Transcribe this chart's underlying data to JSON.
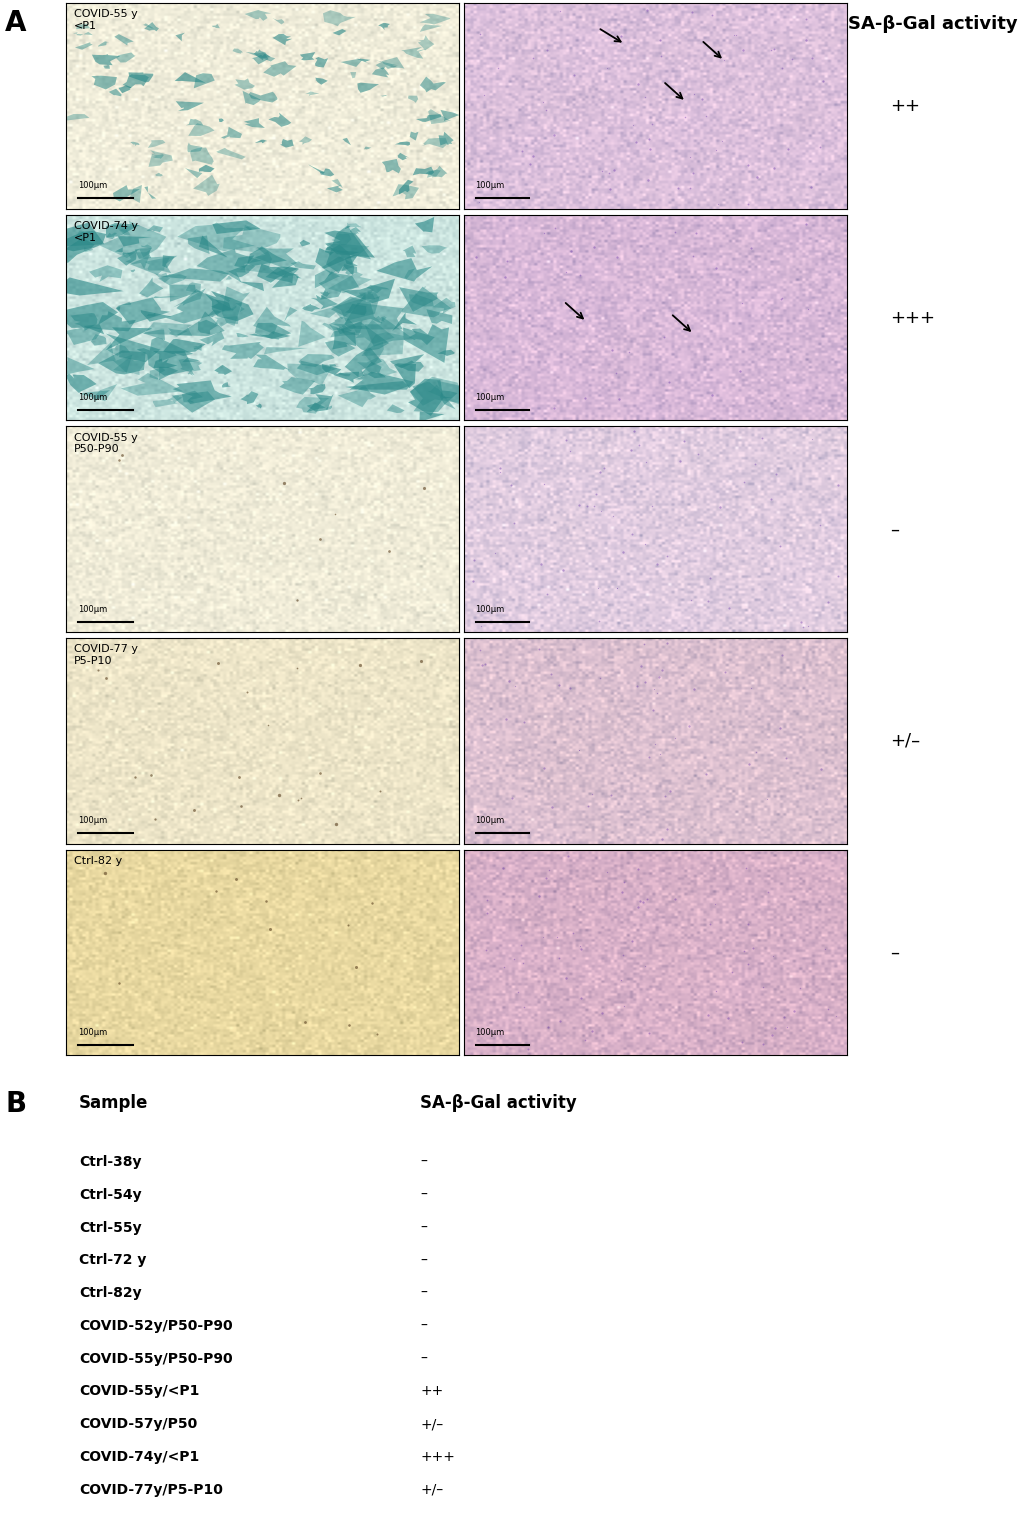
{
  "panel_A_label": "A",
  "panel_B_label": "B",
  "header_right": "SA-β-Gal activity",
  "row_labels_left": [
    "COVID-55 y\n<P1",
    "COVID-74 y\n<P1",
    "COVID-55 y\nP50-P90",
    "COVID-77 y\nP5-P10",
    "Ctrl-82 y"
  ],
  "row_activity_right": [
    "++",
    "+++",
    "–",
    "+/–",
    "–"
  ],
  "panel_B_header_sample": "Sample",
  "panel_B_header_activity": "SA-β-Gal activity",
  "panel_B_rows": [
    [
      "Ctrl-38y",
      "–"
    ],
    [
      "Ctrl-54y",
      "–"
    ],
    [
      "Ctrl-55y",
      "–"
    ],
    [
      "Ctrl-72 y",
      "–"
    ],
    [
      "Ctrl-82y",
      "–"
    ],
    [
      "COVID-52y/P50-P90",
      "–"
    ],
    [
      "COVID-55y/P50-P90",
      "–"
    ],
    [
      "COVID-55y/<P1",
      "++"
    ],
    [
      "COVID-57y/P50",
      "+/–"
    ],
    [
      "COVID-74y/<P1",
      "+++"
    ],
    [
      "COVID-77y/P5-P10",
      "+/–"
    ]
  ],
  "image_border_color": "#000000",
  "background_color": "#ffffff",
  "text_color": "#000000",
  "scalebar_text": "100μm",
  "n_rows": 5,
  "n_cols": 2,
  "fig_width": 10.2,
  "fig_height": 15.23,
  "left_bg_colors": [
    "#f0edda",
    "#cce8e0",
    "#f0ecd8",
    "#ede5c8",
    "#e5d8a8"
  ],
  "right_bg_colors": [
    "#e0cce0",
    "#ddc8e0",
    "#e8d8e8",
    "#e0ccd8",
    "#ddbbd0"
  ],
  "activity_fontsize": 13,
  "label_fontsize": 20,
  "header_fontsize": 13,
  "row_label_fontsize": 8,
  "scalebar_fontsize": 6,
  "table_sample_fontsize": 10,
  "table_header_fontsize": 12
}
